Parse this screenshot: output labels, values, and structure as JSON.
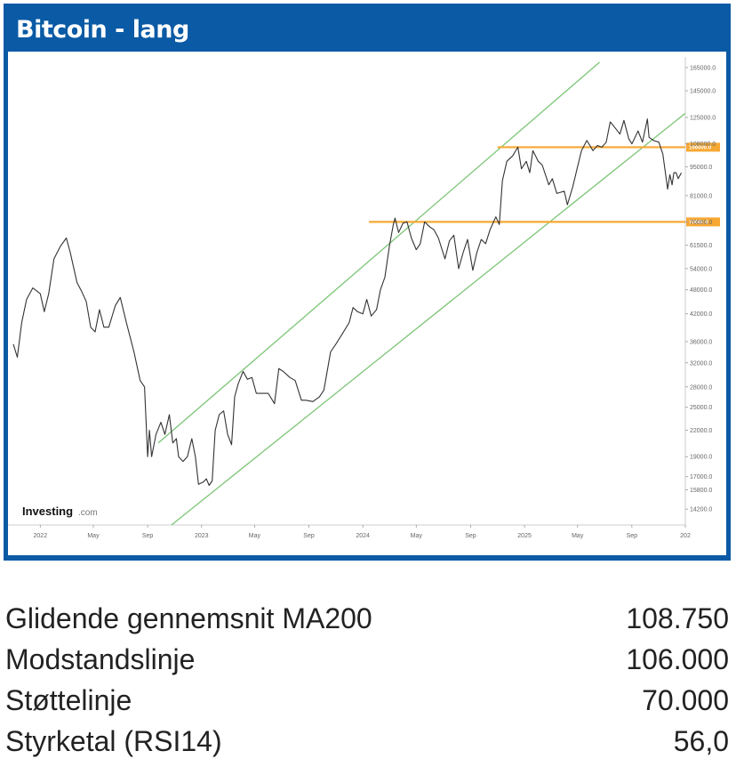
{
  "header": {
    "title": "Bitcoin - lang"
  },
  "watermark": {
    "brand": "Investing",
    "suffix": ".com"
  },
  "colors": {
    "header_bg": "#0a5aa5",
    "price_line": "#333333",
    "channel": "#7cc576",
    "level": "#f7a833"
  },
  "stats": [
    {
      "label": "Glidende gennemsnit MA200",
      "value": "108.750"
    },
    {
      "label": "Modstandslinje",
      "value": "106.000"
    },
    {
      "label": "Støttelinje",
      "value": "70.000"
    },
    {
      "label": "Styrketal (RSI14)",
      "value": "56,0"
    }
  ],
  "chart_data": {
    "type": "line",
    "y_scale": "log",
    "ylim": [
      13000,
      175000
    ],
    "xlim": [
      "2021-11-01",
      "2025-12-31"
    ],
    "y_ticks": [
      14200,
      15800,
      17000,
      19000,
      22000,
      25000,
      28000,
      32000,
      36000,
      42000,
      48000,
      54000,
      61500,
      70000,
      81000,
      95000,
      108000,
      125000,
      145000,
      165000
    ],
    "y_tick_labels": [
      "14200.0",
      "15800.0",
      "17000.0",
      "19000.0",
      "22000.0",
      "25000.0",
      "28000.0",
      "32000.0",
      "36000.0",
      "42000.0",
      "48000.0",
      "54000.0",
      "61500.0",
      "70000.0",
      "81000.0",
      "95000.0",
      "108000.0",
      "125000.0",
      "145000.0",
      "165000.0"
    ],
    "x_ticks": [
      {
        "date": "2022-01-01",
        "label": "2022"
      },
      {
        "date": "2022-05-01",
        "label": "May"
      },
      {
        "date": "2022-09-01",
        "label": "Sep"
      },
      {
        "date": "2023-01-01",
        "label": "2023"
      },
      {
        "date": "2023-05-01",
        "label": "May"
      },
      {
        "date": "2023-09-01",
        "label": "Sep"
      },
      {
        "date": "2024-01-01",
        "label": "2024"
      },
      {
        "date": "2024-05-01",
        "label": "May"
      },
      {
        "date": "2024-09-01",
        "label": "Sep"
      },
      {
        "date": "2025-01-01",
        "label": "2025"
      },
      {
        "date": "2025-05-01",
        "label": "May"
      },
      {
        "date": "2025-09-01",
        "label": "Sep"
      },
      {
        "date": "2025-12-31",
        "label": "202"
      }
    ],
    "series": [
      {
        "values": [
          [
            "2021-11-01",
            35500
          ],
          [
            "2021-11-10",
            33000
          ],
          [
            "2021-11-20",
            40000
          ],
          [
            "2021-12-01",
            45500
          ],
          [
            "2021-12-15",
            48500
          ],
          [
            "2022-01-01",
            47000
          ],
          [
            "2022-01-10",
            42500
          ],
          [
            "2022-01-20",
            47000
          ],
          [
            "2022-02-01",
            57000
          ],
          [
            "2022-02-15",
            61000
          ],
          [
            "2022-03-01",
            64000
          ],
          [
            "2022-03-10",
            59000
          ],
          [
            "2022-03-25",
            50000
          ],
          [
            "2022-04-05",
            47500
          ],
          [
            "2022-04-15",
            45000
          ],
          [
            "2022-04-25",
            39000
          ],
          [
            "2022-05-05",
            38000
          ],
          [
            "2022-05-15",
            43000
          ],
          [
            "2022-05-25",
            39000
          ],
          [
            "2022-06-05",
            39000
          ],
          [
            "2022-06-20",
            44000
          ],
          [
            "2022-07-01",
            46000
          ],
          [
            "2022-07-15",
            40000
          ],
          [
            "2022-08-01",
            34000
          ],
          [
            "2022-08-15",
            29000
          ],
          [
            "2022-08-25",
            28000
          ],
          [
            "2022-09-01",
            19000
          ],
          [
            "2022-09-05",
            22000
          ],
          [
            "2022-09-10",
            19000
          ],
          [
            "2022-09-20",
            21500
          ],
          [
            "2022-10-01",
            23000
          ],
          [
            "2022-10-10",
            21500
          ],
          [
            "2022-10-20",
            24000
          ],
          [
            "2022-10-28",
            20500
          ],
          [
            "2022-11-05",
            21000
          ],
          [
            "2022-11-10",
            19000
          ],
          [
            "2022-11-20",
            18500
          ],
          [
            "2022-11-30",
            19000
          ],
          [
            "2022-12-10",
            21000
          ],
          [
            "2022-12-18",
            19000
          ],
          [
            "2022-12-25",
            16300
          ],
          [
            "2023-01-05",
            16500
          ],
          [
            "2023-01-12",
            16800
          ],
          [
            "2023-01-18",
            16200
          ],
          [
            "2023-01-25",
            16600
          ],
          [
            "2023-02-01",
            22000
          ],
          [
            "2023-02-10",
            24000
          ],
          [
            "2023-02-20",
            24500
          ],
          [
            "2023-03-01",
            21500
          ],
          [
            "2023-03-10",
            20300
          ],
          [
            "2023-03-17",
            26500
          ],
          [
            "2023-03-25",
            28500
          ],
          [
            "2023-04-05",
            30500
          ],
          [
            "2023-04-15",
            29200
          ],
          [
            "2023-04-25",
            29500
          ],
          [
            "2023-05-05",
            27000
          ],
          [
            "2023-05-15",
            27000
          ],
          [
            "2023-06-01",
            27000
          ],
          [
            "2023-06-15",
            25500
          ],
          [
            "2023-06-25",
            31000
          ],
          [
            "2023-07-05",
            30500
          ],
          [
            "2023-07-20",
            29500
          ],
          [
            "2023-08-01",
            29000
          ],
          [
            "2023-08-15",
            26000
          ],
          [
            "2023-08-25",
            26000
          ],
          [
            "2023-09-10",
            25800
          ],
          [
            "2023-09-25",
            26500
          ],
          [
            "2023-10-05",
            27500
          ],
          [
            "2023-10-20",
            34000
          ],
          [
            "2023-11-01",
            35500
          ],
          [
            "2023-11-15",
            37500
          ],
          [
            "2023-12-01",
            40000
          ],
          [
            "2023-12-10",
            43500
          ],
          [
            "2023-12-20",
            42500
          ],
          [
            "2024-01-01",
            42000
          ],
          [
            "2024-01-10",
            45500
          ],
          [
            "2024-01-20",
            41500
          ],
          [
            "2024-02-01",
            43000
          ],
          [
            "2024-02-10",
            48000
          ],
          [
            "2024-02-20",
            51500
          ],
          [
            "2024-03-01",
            61000
          ],
          [
            "2024-03-10",
            69000
          ],
          [
            "2024-03-14",
            71500
          ],
          [
            "2024-03-22",
            66000
          ],
          [
            "2024-04-01",
            69500
          ],
          [
            "2024-04-10",
            70000
          ],
          [
            "2024-04-20",
            64000
          ],
          [
            "2024-05-01",
            60000
          ],
          [
            "2024-05-10",
            62000
          ],
          [
            "2024-05-20",
            70000
          ],
          [
            "2024-06-01",
            68000
          ],
          [
            "2024-06-10",
            67000
          ],
          [
            "2024-06-20",
            64000
          ],
          [
            "2024-07-05",
            57000
          ],
          [
            "2024-07-15",
            63000
          ],
          [
            "2024-07-25",
            65000
          ],
          [
            "2024-08-05",
            54000
          ],
          [
            "2024-08-15",
            59000
          ],
          [
            "2024-08-25",
            63500
          ],
          [
            "2024-09-06",
            53500
          ],
          [
            "2024-09-15",
            59000
          ],
          [
            "2024-09-25",
            63500
          ],
          [
            "2024-10-05",
            62000
          ],
          [
            "2024-10-15",
            67000
          ],
          [
            "2024-10-28",
            72000
          ],
          [
            "2024-11-05",
            69000
          ],
          [
            "2024-11-12",
            88000
          ],
          [
            "2024-11-22",
            98000
          ],
          [
            "2024-12-05",
            101000
          ],
          [
            "2024-12-17",
            106000
          ],
          [
            "2024-12-25",
            94000
          ],
          [
            "2025-01-05",
            98000
          ],
          [
            "2025-01-13",
            92000
          ],
          [
            "2025-01-20",
            104000
          ],
          [
            "2025-02-01",
            98000
          ],
          [
            "2025-02-10",
            96000
          ],
          [
            "2025-02-25",
            86000
          ],
          [
            "2025-03-05",
            89000
          ],
          [
            "2025-03-15",
            82000
          ],
          [
            "2025-04-01",
            83000
          ],
          [
            "2025-04-08",
            77000
          ],
          [
            "2025-04-20",
            85000
          ],
          [
            "2025-05-01",
            95000
          ],
          [
            "2025-05-10",
            104000
          ],
          [
            "2025-05-22",
            110000
          ],
          [
            "2025-06-05",
            104000
          ],
          [
            "2025-06-15",
            107000
          ],
          [
            "2025-06-25",
            106000
          ],
          [
            "2025-07-05",
            109000
          ],
          [
            "2025-07-14",
            122000
          ],
          [
            "2025-07-25",
            118000
          ],
          [
            "2025-08-05",
            114000
          ],
          [
            "2025-08-14",
            123000
          ],
          [
            "2025-08-25",
            111000
          ],
          [
            "2025-09-01",
            108000
          ],
          [
            "2025-09-15",
            116000
          ],
          [
            "2025-09-25",
            109000
          ],
          [
            "2025-10-06",
            124000
          ],
          [
            "2025-10-10",
            112000
          ],
          [
            "2025-10-20",
            110000
          ],
          [
            "2025-11-01",
            109000
          ],
          [
            "2025-11-10",
            102000
          ],
          [
            "2025-11-21",
            84000
          ],
          [
            "2025-11-26",
            91000
          ],
          [
            "2025-12-01",
            86000
          ],
          [
            "2025-12-05",
            92000
          ],
          [
            "2025-12-10",
            92000
          ],
          [
            "2025-12-15",
            89000
          ],
          [
            "2025-12-22",
            92000
          ]
        ]
      }
    ],
    "channel_lines": [
      {
        "from": [
          "2022-09-25",
          20500
        ],
        "to": [
          "2025-06-20",
          170000
        ]
      },
      {
        "from": [
          "2022-10-25",
          13000
        ],
        "to": [
          "2025-12-31",
          128000
        ]
      }
    ],
    "horizontal_levels": [
      {
        "value": 106000,
        "label": "106000.0",
        "from": "2024-11-01"
      },
      {
        "value": 70000,
        "label": "70000.0",
        "from": "2024-01-15"
      }
    ]
  }
}
